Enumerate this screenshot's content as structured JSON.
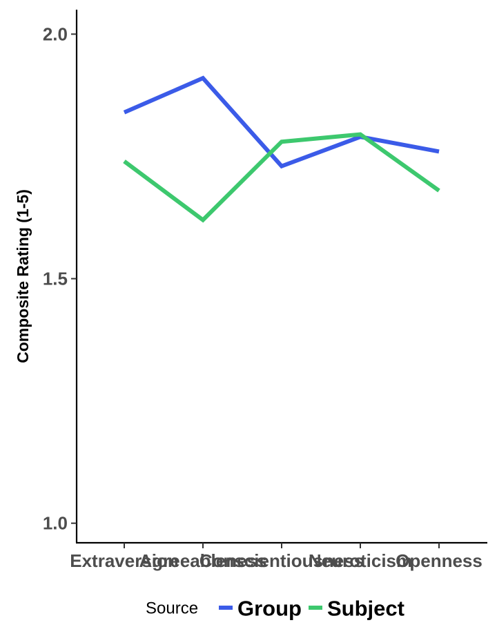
{
  "chart_data": {
    "type": "line",
    "categories": [
      "Extraversion",
      "Agreeableness",
      "Conscientiousness",
      "Neuroticism",
      "Openness"
    ],
    "series": [
      {
        "name": "Group",
        "values": [
          1.84,
          1.91,
          1.73,
          1.79,
          1.76
        ],
        "color": "#3b5be8"
      },
      {
        "name": "Subject",
        "values": [
          1.74,
          1.62,
          1.78,
          1.795,
          1.68
        ],
        "color": "#3dc86e"
      }
    ],
    "ylabel": "Composite Rating (1-5)",
    "xlabel": "",
    "ylim": [
      0.96,
      2.05
    ],
    "yticks": [
      1.0,
      1.5,
      2.0
    ],
    "ytick_labels": [
      "1.0",
      "1.5",
      "2.0"
    ],
    "legend": {
      "title": "Source",
      "position": "bottom"
    },
    "grid": false
  }
}
